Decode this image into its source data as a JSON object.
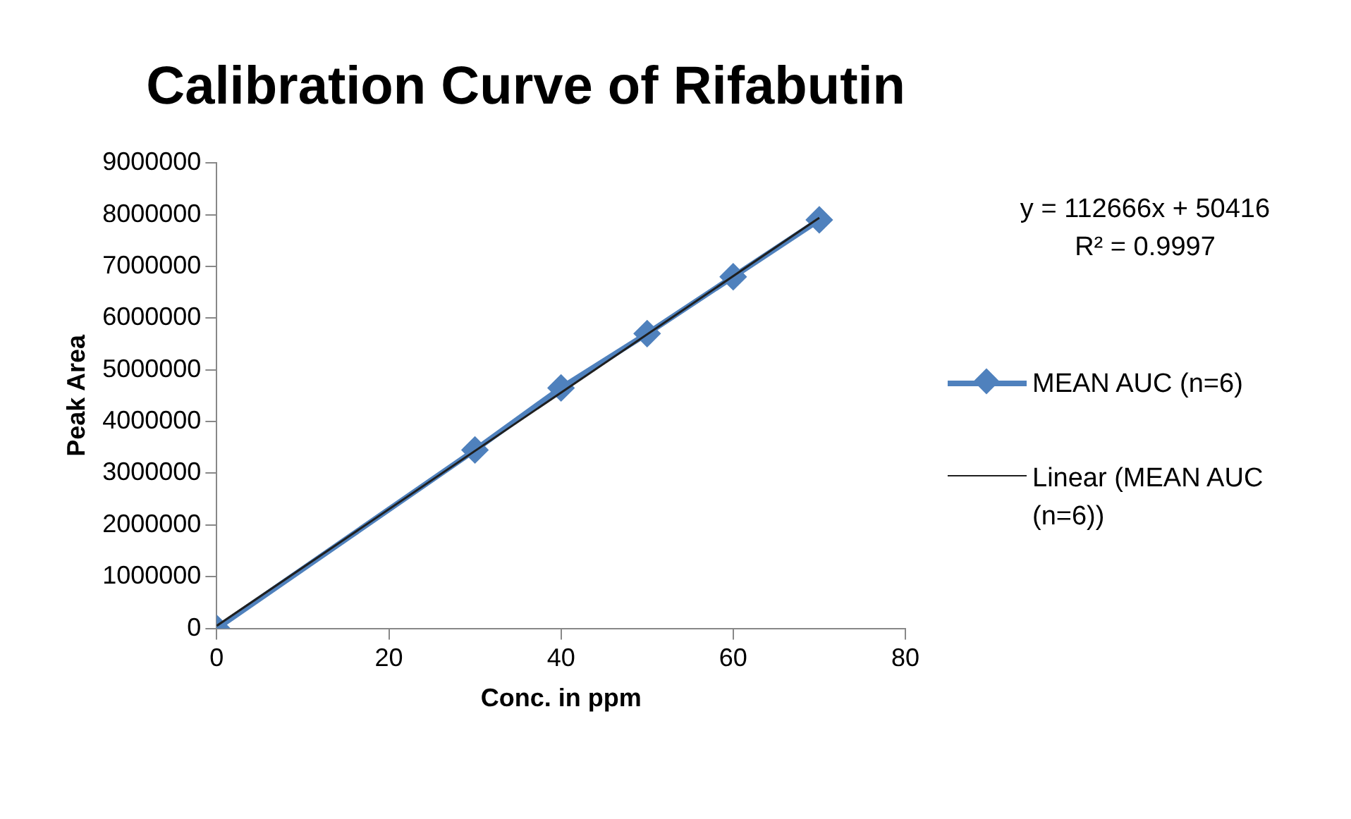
{
  "chart_data": {
    "type": "scatter",
    "title": "Calibration Curve of Rifabutin",
    "xlabel": "Conc. in ppm",
    "ylabel": "Peak Area",
    "xlim": [
      0,
      80
    ],
    "xticks": [
      0,
      20,
      40,
      60,
      80
    ],
    "ylim": [
      0,
      9000000
    ],
    "yticks": [
      0,
      1000000,
      2000000,
      3000000,
      4000000,
      5000000,
      6000000,
      7000000,
      8000000,
      9000000
    ],
    "grid": false,
    "legend": "right",
    "series": [
      {
        "name": "MEAN AUC (n=6)",
        "type": "line",
        "color": "#4f81bd",
        "marker": "diamond",
        "x": [
          0,
          30,
          40,
          50,
          60,
          70
        ],
        "values": [
          0,
          3450000,
          4650000,
          5700000,
          6800000,
          7900000
        ]
      },
      {
        "name": "Linear (MEAN AUC (n=6))",
        "type": "line",
        "color": "#1f1f1f",
        "marker": "none",
        "x": [
          0,
          70
        ],
        "values": [
          50000,
          7940000
        ]
      }
    ],
    "annotations": [
      "y = 112666x + 50416",
      "R² = 0.9997"
    ]
  }
}
